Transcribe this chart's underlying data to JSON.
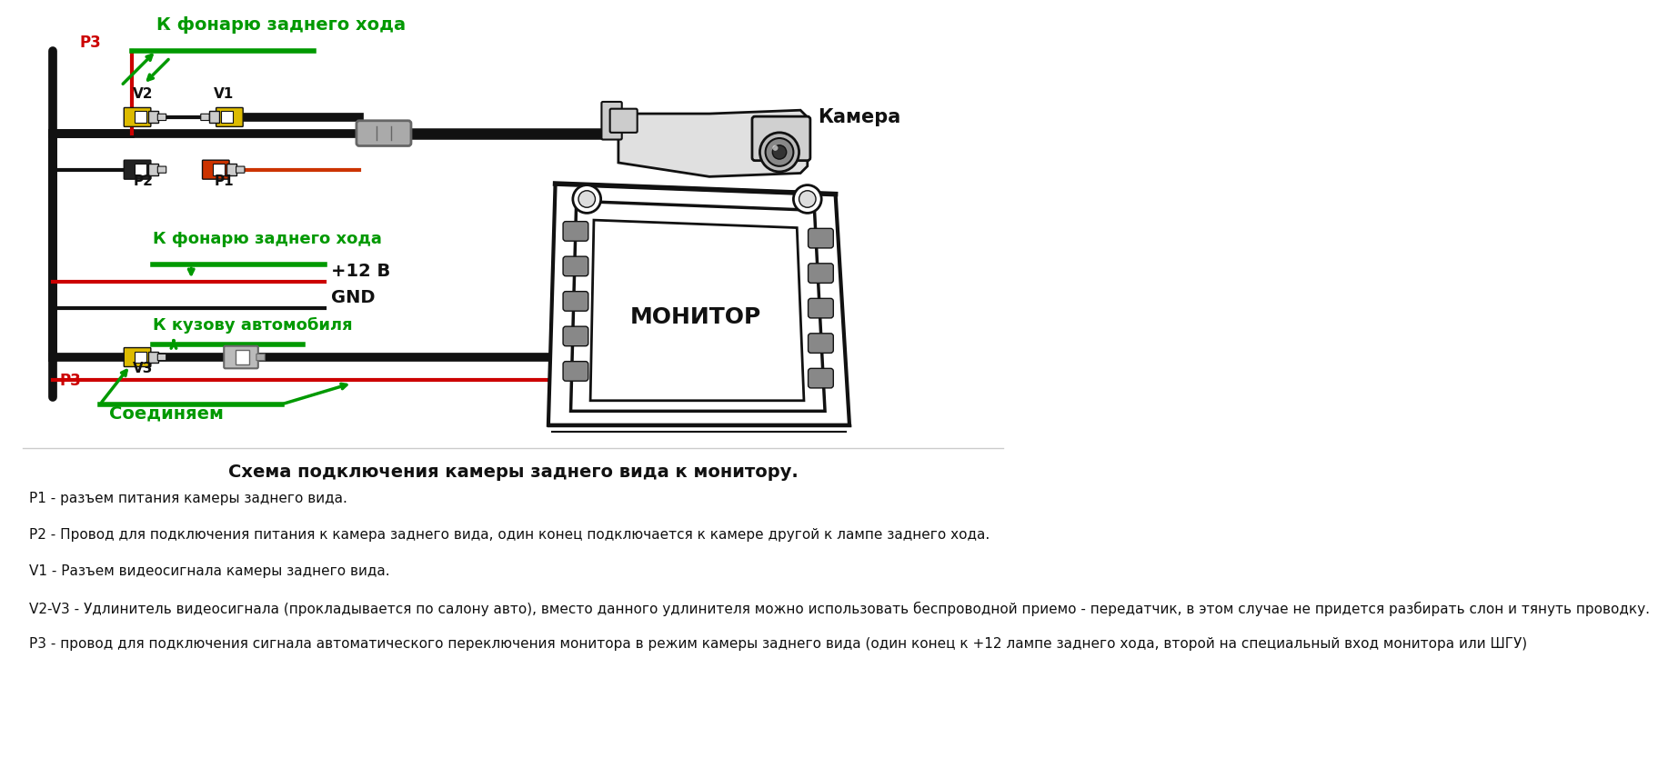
{
  "bg_color": "#ffffff",
  "title_diagram": "Схема подключения камеры заднего вида к монитору.",
  "descriptions": [
    "P1 - разъем питания камеры заднего вида.",
    "P2 - Провод для подключения питания к камера заднего вида, один конец подключается к камере другой к лампе заднего хода.",
    "V1 - Разъем видеосигнала камеры заднего вида.",
    "V2-V3 - Удлинитель видеосигнала (прокладывается по салону авто), вместо данного удлинителя можно использовать беспроводной приемо - передатчик, в этом случае не придется разбирать слон и тянуть проводку.",
    "P3 - провод для подключения сигнала автоматического переключения монитора в режим камеры заднего вида (один конец к +12 лампе заднего хода, второй на специальный вход монитора или ШГУ)"
  ],
  "green": "#009900",
  "red": "#cc0000",
  "black": "#111111",
  "yellow": "#ddbb00",
  "gray_light": "#aaaaaa",
  "gray_dark": "#666666",
  "wire_lw": 3,
  "thick_lw": 7
}
